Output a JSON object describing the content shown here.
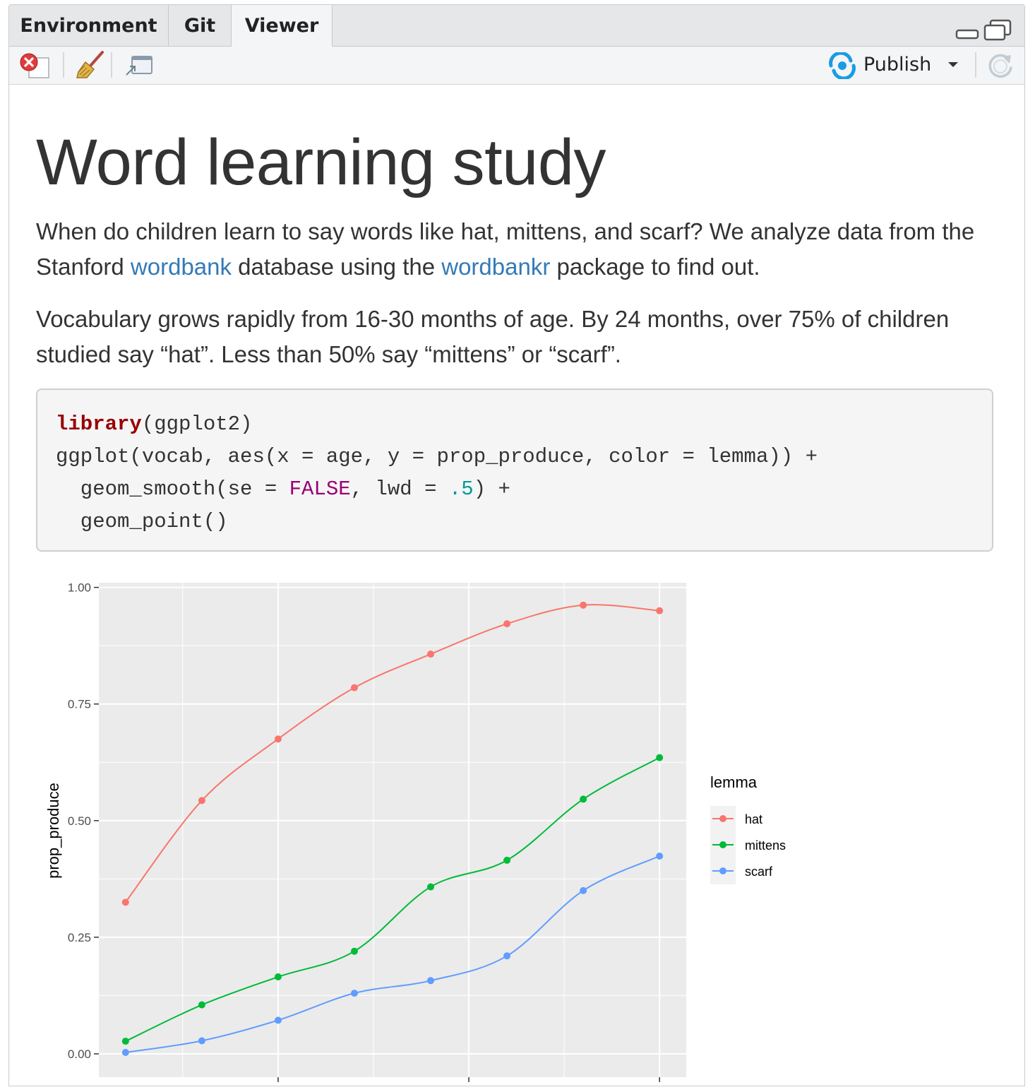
{
  "tabs": [
    {
      "label": "Environment",
      "active": false
    },
    {
      "label": "Git",
      "active": false
    },
    {
      "label": "Viewer",
      "active": true
    }
  ],
  "toolbar": {
    "publish_label": "Publish"
  },
  "doc": {
    "title": "Word learning study",
    "p1": {
      "t1": "When do children learn to say words like hat, mittens, and scarf? We analyze data from the Stanford ",
      "link1": "wordbank",
      "t2": " database using the ",
      "link2": "wordbankr",
      "t3": " package to find out."
    },
    "p2": "Vocabulary grows rapidly from 16-30 months of age. By 24 months, over 75% of children studied say “hat”. Less than 50% say “mittens” or “scarf”.",
    "code": {
      "l1_fn": "library",
      "l1_rest": "(ggplot2)",
      "l2": "ggplot(vocab, aes(x = age, y = prop_produce, color = lemma)) +",
      "l3_a": "  geom_smooth(se = ",
      "l3_false": "FALSE",
      "l3_b": ", lwd = ",
      "l3_num": ".5",
      "l3_c": ") +",
      "l4": "  geom_point()"
    }
  },
  "colors": {
    "hat": "#F8766D",
    "mittens": "#00BA38",
    "scarf": "#619CFF",
    "panel_bg": "#EBEBEB",
    "link": "#337ab7"
  },
  "chart_data": {
    "type": "scatter",
    "xlabel": "",
    "ylabel": "prop_produce",
    "x": [
      16,
      18,
      20,
      22,
      24,
      26,
      28,
      30
    ],
    "ylim": [
      -0.05,
      1.01
    ],
    "xlim": [
      15.3,
      30.7
    ],
    "yticks": [
      0,
      0.25,
      0.5,
      0.75,
      1
    ],
    "ytick_labels": [
      "0.00",
      "0.25",
      "0.50",
      "0.75",
      "1.00"
    ],
    "xticks": [
      20,
      25,
      30
    ],
    "grid": true,
    "smooth": true,
    "legend": {
      "title": "lemma",
      "position": "right"
    },
    "series": [
      {
        "name": "hat",
        "values": [
          0.325,
          0.543,
          0.675,
          0.785,
          0.857,
          0.922,
          0.962,
          0.95
        ]
      },
      {
        "name": "mittens",
        "values": [
          0.027,
          0.105,
          0.165,
          0.22,
          0.358,
          0.415,
          0.546,
          0.635
        ]
      },
      {
        "name": "scarf",
        "values": [
          0.003,
          0.028,
          0.072,
          0.13,
          0.157,
          0.21,
          0.35,
          0.424
        ]
      }
    ]
  }
}
